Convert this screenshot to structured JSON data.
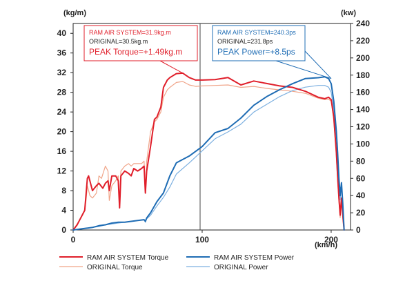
{
  "chart_data": {
    "type": "line",
    "xlabel": "(km/h)",
    "ylabel_left": "(kg/m)",
    "ylabel_right": "(kw)",
    "xlim": [
      0,
      215
    ],
    "ylim_left": [
      0,
      42
    ],
    "ylim_right": [
      0,
      240
    ],
    "x_ticks": [
      0,
      100,
      200
    ],
    "y_ticks_left": [
      0,
      4,
      8,
      12,
      16,
      20,
      24,
      28,
      32,
      36,
      40
    ],
    "y_ticks_right": [
      0,
      20,
      40,
      60,
      80,
      100,
      120,
      140,
      160,
      180,
      200,
      220,
      240
    ],
    "vline_at": 100,
    "series": [
      {
        "name": "RAM AIR SYSTEM Torque",
        "axis": "left",
        "color": "#e01e2a",
        "style": "solid",
        "width": 2,
        "x": [
          0,
          3,
          5,
          7,
          9,
          11,
          12,
          15,
          18,
          20,
          23,
          25,
          27,
          28,
          30,
          33,
          35,
          36,
          37,
          40,
          43,
          45,
          47,
          50,
          53,
          55,
          56,
          57,
          60,
          63,
          65,
          68,
          70,
          73,
          75,
          80,
          85,
          90,
          95,
          100,
          110,
          120,
          130,
          140,
          150,
          160,
          170,
          180,
          190,
          195,
          198,
          200,
          202,
          204,
          205,
          206,
          207,
          208,
          209,
          210
        ],
        "y": [
          0,
          1,
          2,
          3,
          4,
          10.5,
          11,
          8,
          9,
          9.5,
          8.5,
          9.5,
          10,
          8,
          11,
          11,
          10,
          4.5,
          11,
          12,
          11.5,
          11,
          12.5,
          12,
          12.5,
          13,
          7.5,
          12,
          17,
          22.5,
          23,
          25,
          29,
          30.5,
          31,
          31.8,
          31.9,
          31,
          30.5,
          30.5,
          30.6,
          31,
          29.5,
          30.3,
          29.8,
          29.3,
          29,
          28.2,
          27,
          26.7,
          27,
          26.5,
          23,
          16,
          11,
          6.5,
          3,
          6.5,
          3,
          0
        ]
      },
      {
        "name": "ORIGINAL Torque",
        "axis": "left",
        "color": "#f0a488",
        "style": "solid",
        "width": 1.2,
        "x": [
          0,
          5,
          7,
          9,
          10,
          11,
          13,
          15,
          18,
          20,
          22,
          25,
          27,
          28,
          30,
          33,
          35,
          36,
          37,
          40,
          43,
          45,
          47,
          50,
          53,
          55,
          56,
          57,
          60,
          63,
          65,
          68,
          70,
          73,
          75,
          80,
          85,
          90,
          95,
          100,
          110,
          120,
          130,
          140,
          150,
          160,
          170,
          180,
          190,
          195,
          198,
          200,
          202,
          204,
          205,
          206,
          207,
          208,
          209,
          210
        ],
        "y": [
          0,
          2,
          3,
          4,
          6,
          9,
          7,
          6.5,
          7.5,
          11,
          10.5,
          13,
          12,
          6,
          9,
          10,
          11,
          6,
          12,
          13,
          13.5,
          13,
          13.5,
          13.5,
          13.5,
          14,
          8,
          14,
          20,
          22,
          22.5,
          24,
          27,
          28.5,
          29,
          30,
          30.2,
          29.5,
          29.2,
          29.3,
          29.4,
          29.5,
          29,
          29.2,
          28.8,
          28.5,
          28.2,
          27.8,
          26.8,
          26.5,
          26.6,
          26.2,
          22.5,
          15,
          10,
          6,
          2.5,
          6,
          2.5,
          0
        ]
      },
      {
        "name": "RAM AIR SYSTEM Power",
        "axis": "right",
        "color": "#1e6cb4",
        "style": "solid",
        "width": 2,
        "x": [
          0,
          5,
          10,
          15,
          20,
          25,
          30,
          35,
          40,
          45,
          50,
          55,
          56,
          57,
          60,
          65,
          70,
          75,
          80,
          90,
          100,
          110,
          120,
          130,
          140,
          150,
          160,
          170,
          180,
          190,
          195,
          198,
          200,
          202,
          204,
          205,
          206,
          207,
          208,
          209,
          210
        ],
        "y": [
          0,
          1,
          2,
          3,
          5,
          6,
          8,
          9,
          9,
          10,
          11,
          12,
          10,
          14,
          20,
          33,
          43,
          63,
          78,
          86,
          97,
          113,
          118,
          130,
          145,
          155,
          163,
          170,
          176,
          177,
          178,
          176,
          170,
          150,
          115,
          90,
          60,
          40,
          55,
          30,
          0
        ]
      },
      {
        "name": "ORIGINAL Power",
        "axis": "right",
        "color": "#7db0e0",
        "style": "solid",
        "width": 1.2,
        "x": [
          0,
          5,
          10,
          15,
          20,
          25,
          30,
          35,
          40,
          45,
          50,
          55,
          56,
          57,
          60,
          65,
          70,
          75,
          80,
          90,
          100,
          110,
          120,
          130,
          140,
          150,
          160,
          170,
          180,
          190,
          195,
          198,
          200,
          202,
          204,
          205,
          206,
          207,
          208,
          209,
          210
        ],
        "y": [
          0,
          1,
          2,
          3,
          4,
          6,
          7,
          8,
          9,
          10,
          11,
          12,
          9,
          13,
          17,
          28,
          38,
          50,
          65,
          78,
          92,
          106,
          114,
          123,
          137,
          146,
          155,
          162,
          166,
          168,
          168,
          166,
          160,
          140,
          110,
          85,
          55,
          35,
          50,
          28,
          0
        ]
      }
    ]
  },
  "annotations": {
    "torque": {
      "line1": "RAM AIR SYSTEM=31.9kg.m",
      "line2": "ORIGINAL=30.5kg.m",
      "line3": "PEAK Torque=+1.49kg.m",
      "color": "#e01e2a",
      "pointer_x": 85,
      "pointer_y": 31.9
    },
    "power": {
      "line1": "RAM AIR SYSTEM=240.3ps",
      "line2": "ORIGINAL=231.8ps",
      "line3": "PEAK Power=+8.5ps",
      "color": "#1e6cb4",
      "pointer_x": 200,
      "pointer_y": 176
    }
  },
  "legend": {
    "items": [
      {
        "label": "RAM AIR SYSTEM Torque",
        "color": "#e01e2a"
      },
      {
        "label": "RAM AIR SYSTEM Power",
        "color": "#1e6cb4"
      },
      {
        "label": "ORIGINAL Torque",
        "color": "#f0a488"
      },
      {
        "label": "ORIGINAL Power",
        "color": "#7db0e0"
      }
    ]
  }
}
